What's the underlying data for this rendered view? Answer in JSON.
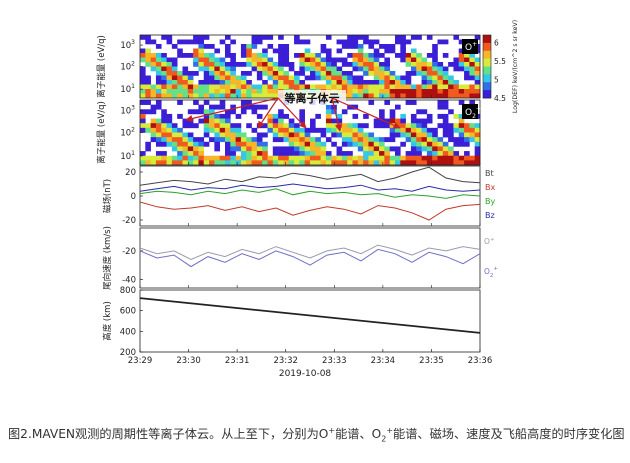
{
  "caption": {
    "lead": "图2.MAVEN观测的周期性等离子体云。从上至下，分别为O",
    "sup1": "+",
    "mid1": "能谱、O",
    "sub1": "2",
    "sup2": "+",
    "tail": "能谱、磁场、速度及飞船高度的时序变化图"
  },
  "chart_data": [
    {
      "type": "heatmap",
      "panel": "O+",
      "badge": "O",
      "badge_sup": "+",
      "ylabel": "离子能量 (eV/q)",
      "yticks": [
        "10^3",
        "10^2",
        "10^1"
      ],
      "colorbar": {
        "label": "Log(DEF) keV/(cm^2 s sr keV)",
        "ticks": [
          6,
          5.5,
          5,
          4.5
        ],
        "range": [
          4.5,
          6.2
        ],
        "colors": [
          "#3b1fd6",
          "#2f6fe8",
          "#35c7e6",
          "#62e08a",
          "#d8ea3a",
          "#f6b62a",
          "#f05a1e",
          "#b00f0f"
        ]
      },
      "annotation": "等离子体云"
    },
    {
      "type": "heatmap",
      "panel": "O2+",
      "badge": "O",
      "badge_sub": "2",
      "badge_sup": "+",
      "ylabel": "离子能量 (eV/q)",
      "yticks": [
        "10^3",
        "10^2",
        "10^1"
      ]
    },
    {
      "type": "line",
      "panel": "magnetic",
      "ylabel": "磁场(nT)",
      "yticks": [
        20,
        0,
        -20
      ],
      "ylim": [
        -25,
        25
      ],
      "series": [
        {
          "name": "Bt",
          "color": "#444444",
          "x": [
            0,
            0.05,
            0.1,
            0.15,
            0.2,
            0.25,
            0.3,
            0.35,
            0.4,
            0.45,
            0.5,
            0.55,
            0.6,
            0.65,
            0.7,
            0.75,
            0.8,
            0.85,
            0.9,
            0.95,
            1
          ],
          "values": [
            9,
            11,
            13,
            12,
            10,
            14,
            12,
            16,
            15,
            19,
            17,
            14,
            16,
            18,
            12,
            15,
            20,
            24,
            15,
            12,
            11
          ]
        },
        {
          "name": "Bx",
          "color": "#c0392b",
          "x": [
            0,
            0.05,
            0.1,
            0.15,
            0.2,
            0.25,
            0.3,
            0.35,
            0.4,
            0.45,
            0.5,
            0.55,
            0.6,
            0.65,
            0.7,
            0.75,
            0.8,
            0.85,
            0.9,
            0.95,
            1
          ],
          "values": [
            -5,
            -9,
            -11,
            -10,
            -8,
            -12,
            -9,
            -13,
            -10,
            -16,
            -12,
            -9,
            -11,
            -15,
            -8,
            -10,
            -14,
            -20,
            -11,
            -8,
            -7
          ]
        },
        {
          "name": "By",
          "color": "#2ca02c",
          "x": [
            0,
            0.05,
            0.1,
            0.15,
            0.2,
            0.25,
            0.3,
            0.35,
            0.4,
            0.45,
            0.5,
            0.55,
            0.6,
            0.65,
            0.7,
            0.75,
            0.8,
            0.85,
            0.9,
            0.95,
            1
          ],
          "values": [
            2,
            4,
            3,
            1,
            4,
            2,
            5,
            3,
            6,
            1,
            4,
            2,
            3,
            1,
            2,
            -1,
            1,
            0,
            -2,
            1,
            0
          ]
        },
        {
          "name": "Bz",
          "color": "#2a2aa8",
          "x": [
            0,
            0.05,
            0.1,
            0.15,
            0.2,
            0.25,
            0.3,
            0.35,
            0.4,
            0.45,
            0.5,
            0.55,
            0.6,
            0.65,
            0.7,
            0.75,
            0.8,
            0.85,
            0.9,
            0.95,
            1
          ],
          "values": [
            4,
            6,
            8,
            5,
            7,
            6,
            9,
            7,
            8,
            10,
            8,
            6,
            7,
            9,
            5,
            6,
            4,
            8,
            5,
            4,
            5
          ]
        }
      ]
    },
    {
      "type": "line",
      "panel": "velocity",
      "ylabel": "尾向速度 (km/s)",
      "yticks": [
        -20,
        -40
      ],
      "ylim": [
        -46,
        -4
      ],
      "series": [
        {
          "name": "O+",
          "label": "O",
          "label_sup": "+",
          "color": "#9a9ab0",
          "x": [
            0,
            0.05,
            0.1,
            0.15,
            0.2,
            0.25,
            0.3,
            0.35,
            0.4,
            0.45,
            0.5,
            0.55,
            0.6,
            0.65,
            0.7,
            0.75,
            0.8,
            0.85,
            0.9,
            0.95,
            1
          ],
          "values": [
            -18,
            -22,
            -20,
            -26,
            -21,
            -24,
            -19,
            -22,
            -17,
            -21,
            -25,
            -20,
            -18,
            -22,
            -16,
            -19,
            -23,
            -18,
            -20,
            -17,
            -19
          ]
        },
        {
          "name": "O2+",
          "label": "O",
          "label_sub": "2",
          "label_sup": "+",
          "color": "#6f6fc8",
          "x": [
            0,
            0.05,
            0.1,
            0.15,
            0.2,
            0.25,
            0.3,
            0.35,
            0.4,
            0.45,
            0.5,
            0.55,
            0.6,
            0.65,
            0.7,
            0.75,
            0.8,
            0.85,
            0.9,
            0.95,
            1
          ],
          "values": [
            -20,
            -25,
            -23,
            -31,
            -24,
            -28,
            -22,
            -26,
            -20,
            -24,
            -30,
            -23,
            -21,
            -27,
            -19,
            -22,
            -28,
            -21,
            -24,
            -29,
            -22
          ]
        }
      ]
    },
    {
      "type": "line",
      "panel": "altitude",
      "ylabel": "高度 (km)",
      "yticks": [
        800,
        600,
        400,
        200
      ],
      "ylim": [
        200,
        800
      ],
      "xticks": [
        "23:29",
        "23:30",
        "23:31",
        "23:32",
        "23:33",
        "23:34",
        "23:35",
        "23:36"
      ],
      "xlabel": "2019-10-08",
      "series": [
        {
          "name": "altitude",
          "color": "#222222",
          "x": [
            0,
            1
          ],
          "values": [
            722,
            385
          ]
        }
      ]
    }
  ]
}
